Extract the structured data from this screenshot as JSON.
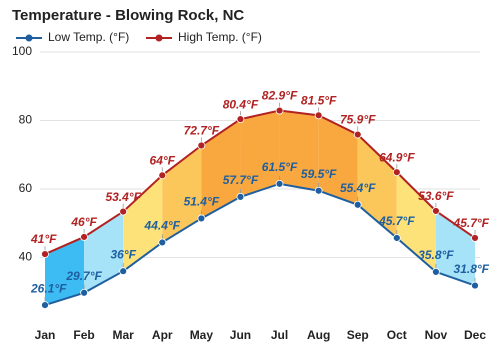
{
  "chart_data": {
    "type": "line",
    "title": "Temperature - Blowing Rock, NC",
    "categories": [
      "Jan",
      "Feb",
      "Mar",
      "Apr",
      "May",
      "Jun",
      "Jul",
      "Aug",
      "Sep",
      "Oct",
      "Nov",
      "Dec"
    ],
    "series": [
      {
        "name": "Low Temp. (°F)",
        "color": "#1f5f9f",
        "values": [
          26.1,
          29.7,
          36,
          44.4,
          51.4,
          57.7,
          61.5,
          59.5,
          55.4,
          45.7,
          35.8,
          31.8
        ],
        "value_labels": [
          "26.1°F",
          "29.7°F",
          "36°F",
          "44.4°F",
          "51.4°F",
          "57.7°F",
          "61.5°F",
          "59.5°F",
          "55.4°F",
          "45.7°F",
          "35.8°F",
          "31.8°F"
        ]
      },
      {
        "name": "High Temp. (°F)",
        "color": "#b22222",
        "values": [
          41,
          46,
          53.4,
          64,
          72.7,
          80.4,
          82.9,
          81.5,
          75.9,
          64.9,
          53.6,
          45.7
        ],
        "value_labels": [
          "41°F",
          "46°F",
          "53.4°F",
          "64°F",
          "72.7°F",
          "80.4°F",
          "82.9°F",
          "81.5°F",
          "75.9°F",
          "64.9°F",
          "53.6°F",
          "45.7°F"
        ]
      }
    ],
    "ylim": [
      20,
      100
    ],
    "yticks": [
      40,
      60,
      80,
      100
    ],
    "grid": true
  }
}
